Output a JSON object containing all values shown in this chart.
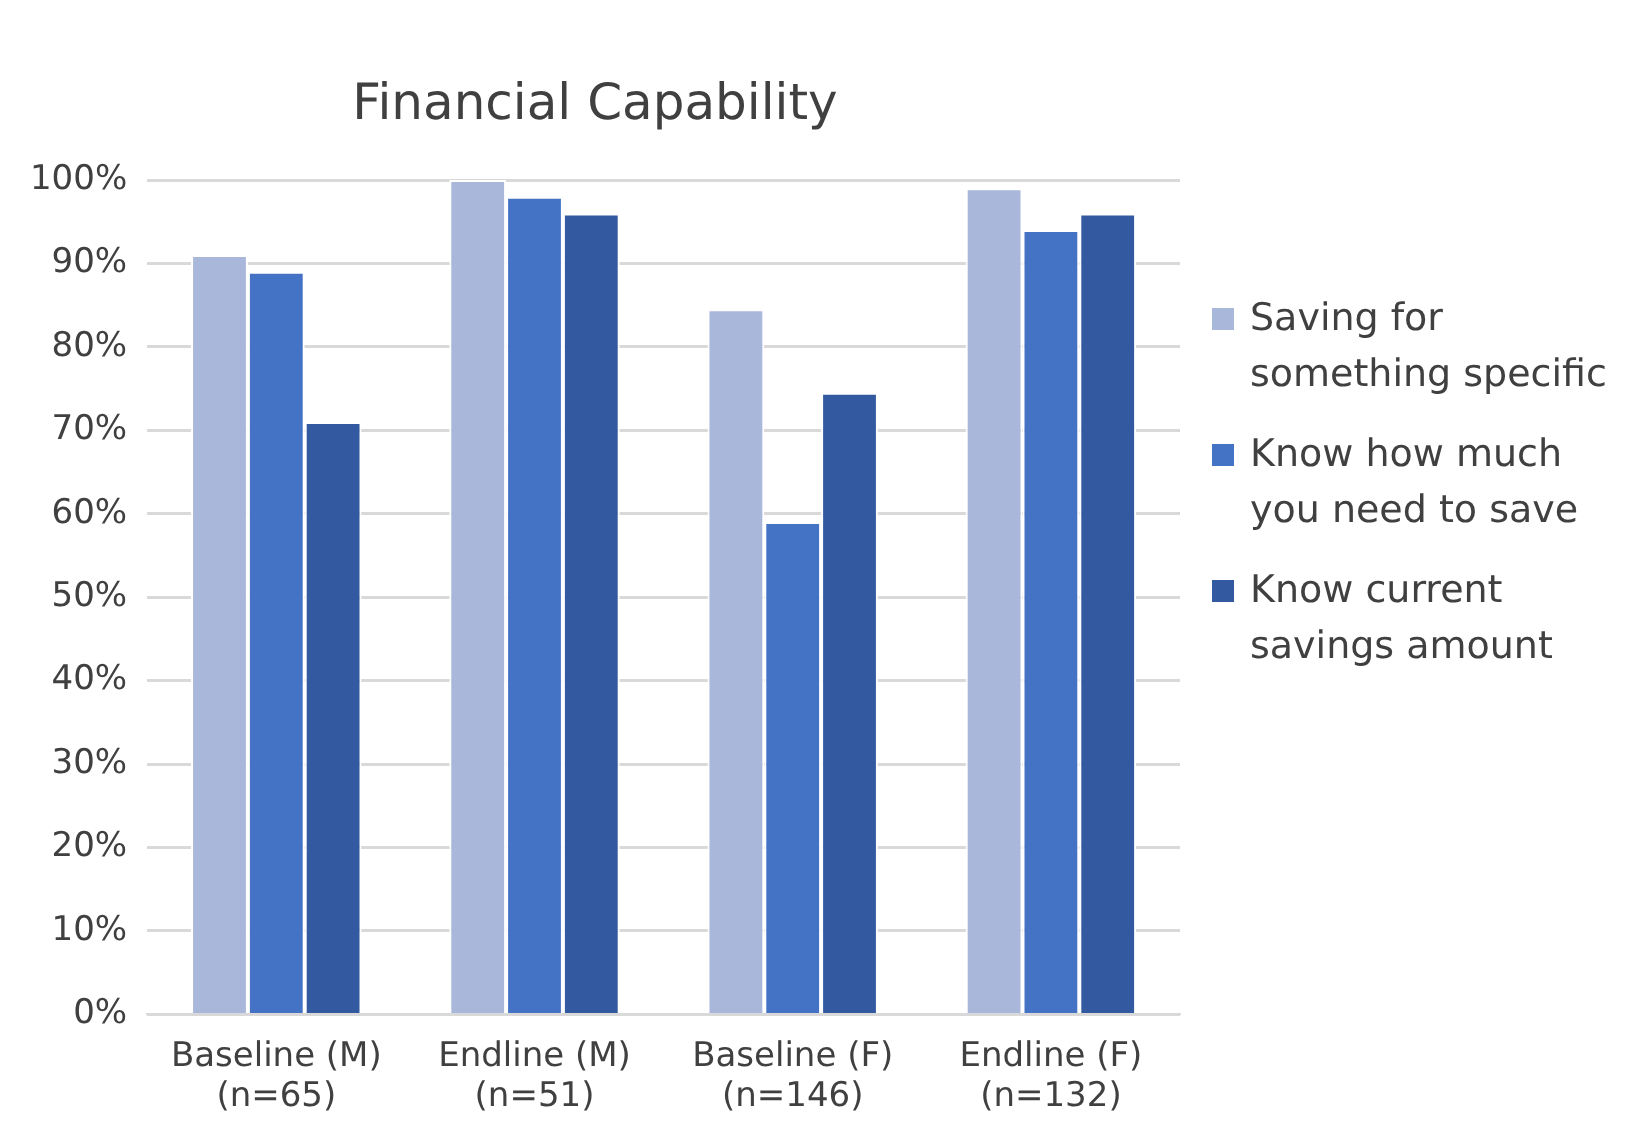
{
  "chart_data": {
    "type": "bar",
    "title": "Financial Capability",
    "categories": [
      "Baseline (M)\n(n=65)",
      "Endline (M)\n(n=51)",
      "Baseline (F)\n(n=146)",
      "Endline (F)\n(n=132)"
    ],
    "series": [
      {
        "name": "Saving for something specific",
        "color": "#a9b7db",
        "values": [
          91,
          100,
          84.5,
          99
        ]
      },
      {
        "name": "Know how much you need to save",
        "color": "#4472c4",
        "values": [
          89,
          98,
          59,
          94
        ]
      },
      {
        "name": "Know current savings amount",
        "color": "#335aa1",
        "values": [
          71,
          96,
          74.5,
          96
        ]
      }
    ],
    "ylim": [
      0,
      100
    ],
    "yticks": [
      {
        "value": 0,
        "label": "0%"
      },
      {
        "value": 10,
        "label": "10%"
      },
      {
        "value": 20,
        "label": "20%"
      },
      {
        "value": 30,
        "label": "30%"
      },
      {
        "value": 40,
        "label": "40%"
      },
      {
        "value": 50,
        "label": "50%"
      },
      {
        "value": 60,
        "label": "60%"
      },
      {
        "value": 70,
        "label": "70%"
      },
      {
        "value": 80,
        "label": "80%"
      },
      {
        "value": 90,
        "label": "90%"
      },
      {
        "value": 100,
        "label": "100%"
      }
    ],
    "grid": "y",
    "legend": "right"
  }
}
